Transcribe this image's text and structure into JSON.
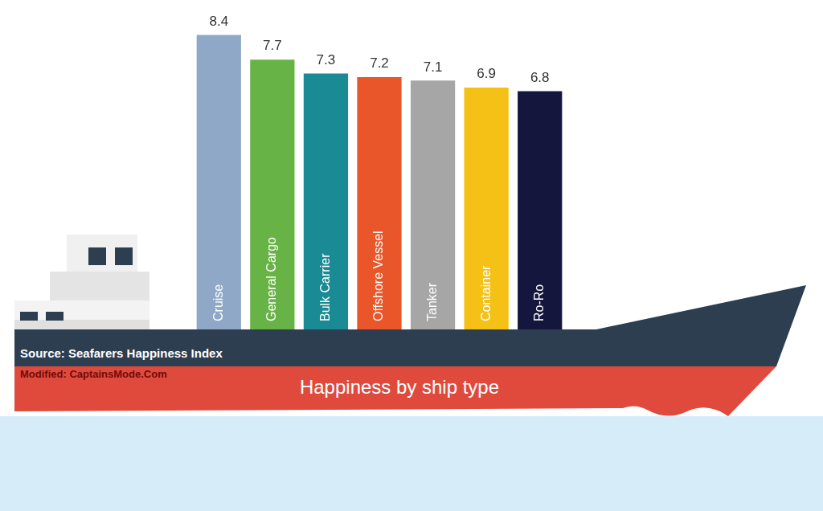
{
  "chart_data": {
    "type": "bar",
    "title": "Happiness by ship type",
    "annotations": [
      "Source: Seafarers Happiness Index",
      "Modified: CaptainsMode.Com"
    ],
    "categories": [
      "Cruise",
      "General Cargo",
      "Bulk Carrier",
      "Offshore Vessel",
      "Tanker",
      "Container",
      "Ro-Ro"
    ],
    "values": [
      8.4,
      7.7,
      7.3,
      7.2,
      7.1,
      6.9,
      6.8
    ],
    "colors": [
      "#8fa8c8",
      "#67b346",
      "#1a8a94",
      "#e8562a",
      "#a6a6a6",
      "#f5c116",
      "#15163d"
    ],
    "ylim": [
      0,
      9.4
    ],
    "grid": false,
    "data_labels": true,
    "tick_labels": false
  }
}
